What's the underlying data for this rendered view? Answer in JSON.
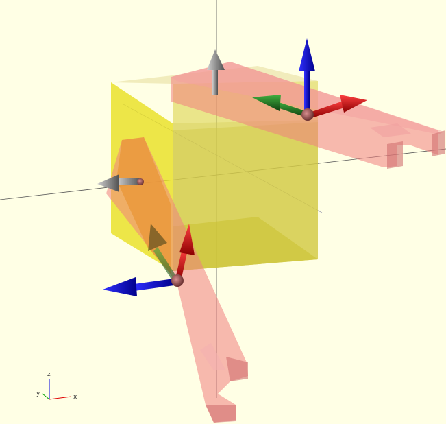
{
  "viewport": {
    "background_color": "#ffffe5",
    "model_color": "#e6e600",
    "highlight_color": "#f08080"
  },
  "axes_indicator": {
    "x_label": "x",
    "y_label": "y",
    "z_label": "z",
    "x_color": "#e00000",
    "y_color": "#00a000",
    "z_color": "#0000e0"
  },
  "gizmos": [
    {
      "name": "gizmo-top-right",
      "axes": [
        "x",
        "y",
        "z"
      ]
    },
    {
      "name": "gizmo-bottom-left",
      "axes": [
        "x",
        "y",
        "z"
      ]
    }
  ]
}
